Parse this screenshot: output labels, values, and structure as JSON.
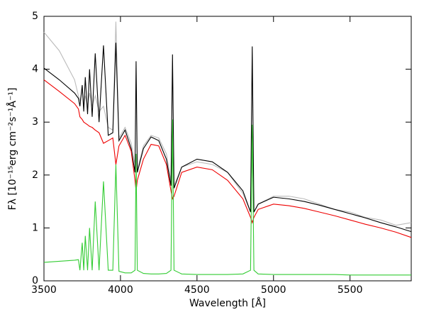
{
  "chart_data": {
    "type": "line",
    "xlabel": "Wavelength [Å]",
    "ylabel": "Fλ [10⁻¹⁵erg cm⁻²s⁻¹Å⁻¹]",
    "x": [
      3500,
      3600,
      3700,
      3725,
      3735,
      3750,
      3760,
      3770,
      3785,
      3798,
      3815,
      3835,
      3860,
      3889,
      3920,
      3950,
      3970,
      3990,
      4030,
      4070,
      4095,
      4102,
      4110,
      4150,
      4200,
      4250,
      4300,
      4330,
      4340,
      4350,
      4400,
      4500,
      4600,
      4700,
      4800,
      4850,
      4861,
      4872,
      4900,
      5000,
      5100,
      5200,
      5300,
      5400,
      5500,
      5600,
      5700,
      5800,
      5900
    ],
    "series": [
      {
        "color": "#bbbbbb",
        "values": [
          4.7,
          4.35,
          3.8,
          3.5,
          3.4,
          3.6,
          3.3,
          3.5,
          3.3,
          3.55,
          3.3,
          3.5,
          3.2,
          3.3,
          2.9,
          2.85,
          4.9,
          2.7,
          2.9,
          2.6,
          2.2,
          2.4,
          2.1,
          2.55,
          2.75,
          2.7,
          2.4,
          1.9,
          2.4,
          1.8,
          2.15,
          2.25,
          2.2,
          2.05,
          1.65,
          1.3,
          2.9,
          1.3,
          1.45,
          1.6,
          1.6,
          1.55,
          1.45,
          1.35,
          1.3,
          1.2,
          1.15,
          1.05,
          1.1
        ]
      },
      {
        "color": "#000000",
        "values": [
          4.02,
          3.8,
          3.55,
          3.45,
          3.3,
          3.7,
          3.2,
          3.85,
          3.15,
          4.0,
          3.1,
          4.3,
          3.0,
          4.45,
          2.75,
          2.8,
          4.5,
          2.65,
          2.85,
          2.5,
          2.05,
          4.15,
          2.05,
          2.5,
          2.72,
          2.65,
          2.3,
          1.8,
          4.28,
          1.75,
          2.15,
          2.3,
          2.25,
          2.05,
          1.7,
          1.3,
          4.43,
          1.3,
          1.45,
          1.58,
          1.55,
          1.5,
          1.43,
          1.35,
          1.27,
          1.19,
          1.1,
          1.02,
          0.93
        ]
      },
      {
        "color": "#ee0000",
        "values": [
          3.8,
          3.58,
          3.35,
          3.25,
          3.1,
          3.05,
          3.0,
          2.98,
          2.95,
          2.92,
          2.9,
          2.85,
          2.8,
          2.6,
          2.65,
          2.7,
          2.2,
          2.55,
          2.75,
          2.45,
          1.9,
          1.7,
          1.9,
          2.3,
          2.58,
          2.55,
          2.2,
          1.7,
          1.55,
          1.6,
          2.05,
          2.15,
          2.1,
          1.9,
          1.55,
          1.2,
          1.1,
          1.2,
          1.35,
          1.45,
          1.42,
          1.37,
          1.3,
          1.23,
          1.15,
          1.07,
          1.0,
          0.92,
          0.82
        ]
      },
      {
        "color": "#33cc33",
        "values": [
          0.35,
          0.37,
          0.39,
          0.4,
          0.2,
          0.72,
          0.2,
          0.85,
          0.2,
          1.0,
          0.2,
          1.5,
          0.2,
          1.88,
          0.2,
          0.2,
          2.2,
          0.18,
          0.15,
          0.15,
          0.2,
          2.4,
          0.2,
          0.14,
          0.13,
          0.13,
          0.14,
          0.2,
          3.05,
          0.2,
          0.13,
          0.12,
          0.12,
          0.12,
          0.13,
          0.2,
          2.95,
          0.2,
          0.13,
          0.12,
          0.12,
          0.12,
          0.12,
          0.12,
          0.11,
          0.11,
          0.11,
          0.11,
          0.11
        ]
      }
    ],
    "xlim": [
      3500,
      5900
    ],
    "ylim": [
      0,
      5
    ],
    "xticks": [
      3500,
      4000,
      4500,
      5000,
      5500
    ],
    "yticks": [
      0,
      1,
      2,
      3,
      4,
      5
    ]
  }
}
